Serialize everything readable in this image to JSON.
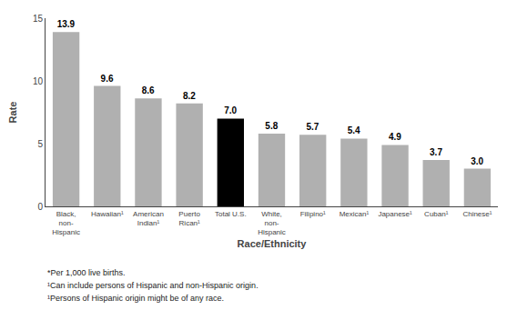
{
  "chart_data": {
    "type": "bar",
    "categories": [
      "Black,\nnon-\nHispanic",
      "Hawaiian¹",
      "American\nIndian¹",
      "Puerto\nRican¹",
      "Total U.S.",
      "White,\nnon-\nHispanic",
      "Filipino¹",
      "Mexican¹",
      "Japanese¹",
      "Cuban¹",
      "Chinese¹"
    ],
    "values": [
      13.9,
      9.6,
      8.6,
      8.2,
      7.0,
      5.8,
      5.7,
      5.4,
      4.9,
      3.7,
      3.0
    ],
    "value_labels": [
      "13.9",
      "9.6",
      "8.6",
      "8.2",
      "7.0",
      "5.8",
      "5.7",
      "5.4",
      "4.9",
      "3.7",
      "3.0"
    ],
    "data_labels": true,
    "colors": [
      "#b0b0b0",
      "#b0b0b0",
      "#b0b0b0",
      "#b0b0b0",
      "#000000",
      "#b0b0b0",
      "#b0b0b0",
      "#b0b0b0",
      "#b0b0b0",
      "#b0b0b0",
      "#b0b0b0"
    ],
    "xlabel": "Race/Ethnicity",
    "ylabel": "Rate",
    "ylim": [
      0,
      15
    ],
    "yticks": [
      0,
      5,
      10,
      15
    ],
    "grid": false,
    "annotations": [
      "*Per 1,000 live births.",
      "¹Can include persons of Hispanic and non-Hispanic origin.",
      "¹Persons of Hispanic origin might be of any race."
    ]
  }
}
